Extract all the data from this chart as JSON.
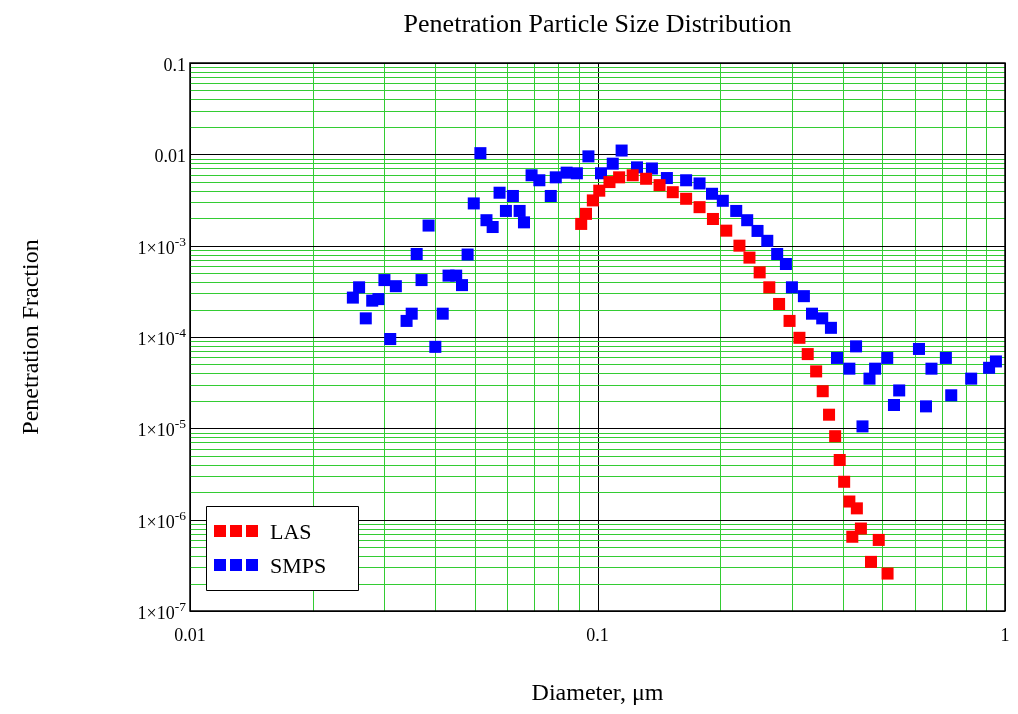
{
  "chart_data": {
    "type": "scatter",
    "title": "Penetration Particle Size Distribution",
    "xlabel": "Diameter, μm",
    "ylabel": "Penetration Fraction",
    "log": "xy",
    "grid": true,
    "legend": "bottom left",
    "marker": "square",
    "xlim": [
      0.01,
      1
    ],
    "xticks": [
      0.01,
      {
        "value": 0.02,
        "label": null
      },
      {
        "value": 0.03,
        "label": null
      },
      {
        "value": 0.04,
        "label": null
      },
      {
        "value": 0.05,
        "label": null
      },
      {
        "value": 0.06,
        "label": null
      },
      {
        "value": 0.07,
        "label": null
      },
      {
        "value": 0.08,
        "label": null
      },
      {
        "value": 0.09,
        "label": null
      },
      0.1,
      {
        "value": 0.2,
        "label": null
      },
      {
        "value": 0.3,
        "label": null
      },
      {
        "value": 0.4,
        "label": null
      },
      {
        "value": 0.5,
        "label": null
      },
      {
        "value": 0.6,
        "label": null
      },
      {
        "value": 0.7,
        "label": null
      },
      {
        "value": 0.8,
        "label": null
      },
      {
        "value": 0.9,
        "label": null
      },
      1
    ],
    "ylim": [
      1e-07,
      0.1
    ],
    "yticks": [
      0.1,
      {
        "value": 0.09,
        "label": null
      },
      {
        "value": 0.08,
        "label": null
      },
      {
        "value": 0.07,
        "label": null
      },
      {
        "value": 0.06,
        "label": null
      },
      {
        "value": 0.05,
        "label": null
      },
      {
        "value": 0.04,
        "label": null
      },
      {
        "value": 0.03,
        "label": null
      },
      {
        "value": 0.02,
        "label": null
      },
      0.01,
      {
        "value": 0.009,
        "label": null
      },
      {
        "value": 0.008,
        "label": null
      },
      {
        "value": 0.007,
        "label": null
      },
      {
        "value": 0.006,
        "label": null
      },
      {
        "value": 0.005,
        "label": null
      },
      {
        "value": 0.004,
        "label": null
      },
      {
        "value": 0.003,
        "label": null
      },
      {
        "value": 0.002,
        "label": null
      },
      {
        "value": 0.001,
        "label": "1×10$^{-3}$"
      },
      {
        "value": 0.0009,
        "label": null
      },
      {
        "value": 0.0008,
        "label": null
      },
      {
        "value": 0.0007,
        "label": null
      },
      {
        "value": 0.0006,
        "label": null
      },
      {
        "value": 0.0005,
        "label": null
      },
      {
        "value": 0.0004,
        "label": null
      },
      {
        "value": 0.0003,
        "label": null
      },
      {
        "value": 0.0002,
        "label": null
      },
      {
        "value": 0.0001,
        "label": "1×10$^{-4}$"
      },
      {
        "value": 9e-05,
        "label": null
      },
      {
        "value": 8e-05,
        "label": null
      },
      {
        "value": 7e-05,
        "label": null
      },
      {
        "value": 6e-05,
        "label": null
      },
      {
        "value": 5e-05,
        "label": null
      },
      {
        "value": 4e-05,
        "label": null
      },
      {
        "value": 3e-05,
        "label": null
      },
      {
        "value": 2e-05,
        "label": null
      },
      {
        "value": 1e-05,
        "label": "1×10$^{-5}$"
      },
      {
        "value": 9e-06,
        "label": null
      },
      {
        "value": 8e-06,
        "label": null
      },
      {
        "value": 7e-06,
        "label": null
      },
      {
        "value": 6e-06,
        "label": null
      },
      {
        "value": 5e-06,
        "label": null
      },
      {
        "value": 4e-06,
        "label": null
      },
      {
        "value": 3e-06,
        "label": null
      },
      {
        "value": 2e-06,
        "label": null
      },
      {
        "value": 1e-06,
        "label": "1×10$^{-6}$"
      },
      {
        "value": 9e-07,
        "label": null
      },
      {
        "value": 8e-07,
        "label": null
      },
      {
        "value": 7e-07,
        "label": null
      },
      {
        "value": 6e-07,
        "label": null
      },
      {
        "value": 5e-07,
        "label": null
      },
      {
        "value": 4e-07,
        "label": null
      },
      {
        "value": 3e-07,
        "label": null
      },
      {
        "value": 2e-07,
        "label": null
      },
      {
        "value": 1e-07,
        "label": "1×10$^{-7}$"
      }
    ],
    "series": [
      {
        "name": "LAS",
        "color": "#ff0000",
        "x": [
          0.0912,
          0.0937,
          0.0974,
          0.101,
          0.107,
          0.113,
          0.122,
          0.1316,
          0.142,
          0.153,
          0.165,
          0.178,
          0.192,
          0.207,
          0.223,
          0.236,
          0.25,
          0.264,
          0.279,
          0.296,
          0.313,
          0.328,
          0.344,
          0.357,
          0.37,
          0.383,
          0.393,
          0.403,
          0.415,
          0.433,
          0.443,
          0.422,
          0.49,
          0.469,
          0.515
        ],
        "values": [
          0.00173,
          0.00223,
          0.00313,
          0.004,
          0.00497,
          0.0056,
          0.0059,
          0.0054,
          0.0046,
          0.00385,
          0.00326,
          0.00264,
          0.00196,
          0.00146,
          0.001,
          0.00074,
          0.00051,
          0.00035,
          0.00023,
          0.00015,
          9.8e-05,
          6.5e-05,
          4.2e-05,
          2.55e-05,
          1.41e-05,
          8.2e-06,
          4.5e-06,
          2.6e-06,
          1.58e-06,
          1.33e-06,
          8e-07,
          6.5e-07,
          6e-07,
          3.45e-07,
          2.57e-07
        ]
      },
      {
        "name": "SMPS",
        "color": "#0000ff",
        "x": [
          0.0251,
          0.026,
          0.027,
          0.028,
          0.029,
          0.03,
          0.031,
          0.032,
          0.034,
          0.035,
          0.036,
          0.037,
          0.0385,
          0.04,
          0.0417,
          0.0431,
          0.045,
          0.0465,
          0.048,
          0.0497,
          0.0516,
          0.0534,
          0.0553,
          0.0575,
          0.0596,
          0.062,
          0.0644,
          0.066,
          0.0689,
          0.072,
          0.0768,
          0.079,
          0.084,
          0.089,
          0.095,
          0.102,
          0.109,
          0.1146,
          0.125,
          0.136,
          0.148,
          0.165,
          0.178,
          0.191,
          0.203,
          0.219,
          0.233,
          0.247,
          0.261,
          0.276,
          0.29,
          0.3,
          0.321,
          0.336,
          0.356,
          0.374,
          0.387,
          0.415,
          0.431,
          0.447,
          0.465,
          0.48,
          0.514,
          0.534,
          0.55,
          0.615,
          0.64,
          0.66,
          0.716,
          0.738,
          0.826,
          0.914,
          0.95
        ],
        "values": [
          0.00027,
          0.00035,
          0.00016,
          0.00025,
          0.00026,
          0.00042,
          9.5e-05,
          0.00036,
          0.00015,
          0.00018,
          0.00081,
          0.00042,
          0.00166,
          7.8e-05,
          0.00018,
          0.00047,
          0.00047,
          0.00037,
          0.0008,
          0.0029,
          0.0103,
          0.0019,
          0.0016,
          0.0038,
          0.0024,
          0.0035,
          0.0024,
          0.0018,
          0.0059,
          0.0052,
          0.0035,
          0.0056,
          0.0063,
          0.0062,
          0.0095,
          0.0062,
          0.0079,
          0.011,
          0.0072,
          0.007,
          0.0055,
          0.0052,
          0.0048,
          0.0037,
          0.0031,
          0.0024,
          0.0019,
          0.00145,
          0.00113,
          0.00081,
          0.00063,
          0.00035,
          0.00028,
          0.00018,
          0.00016,
          0.000126,
          5.9e-05,
          4.5e-05,
          7.9e-05,
          1.05e-05,
          3.5e-05,
          4.5e-05,
          5.9e-05,
          1.8e-05,
          2.6e-05,
          7.4e-05,
          1.74e-05,
          4.5e-05,
          5.9e-05,
          2.3e-05,
          3.5e-05,
          4.6e-05,
          5.4e-05
        ]
      }
    ]
  }
}
